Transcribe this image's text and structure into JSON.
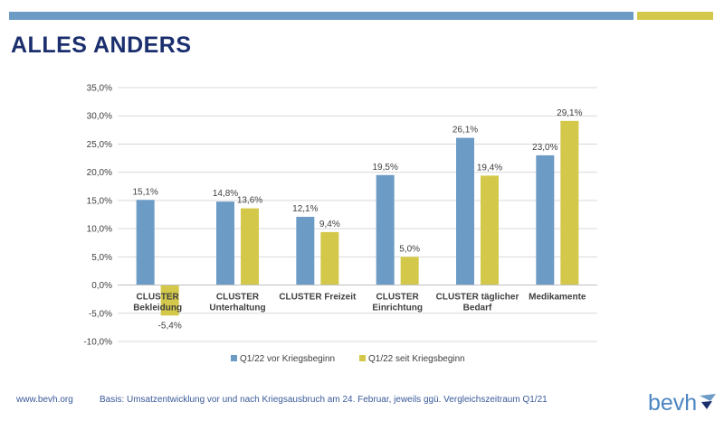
{
  "slide": {
    "title": "ALLES ANDERS",
    "footer_url": "www.bevh.org",
    "footer_note": "Basis: Umsatzentwicklung vor und nach Kriegsausbruch am 24. Februar, jeweils ggü. Vergleichszeitraum Q1/21",
    "logo_text": "bevh",
    "colors": {
      "accent_blue": "#6c9bc5",
      "accent_yellow": "#d4c84a",
      "title": "#1b2f6e"
    }
  },
  "chart_data": {
    "type": "bar",
    "categories": [
      [
        "CLUSTER",
        "Bekleidung"
      ],
      [
        "CLUSTER",
        "Unterhaltung"
      ],
      [
        "CLUSTER Freizeit"
      ],
      [
        "CLUSTER",
        "Einrichtung"
      ],
      [
        "CLUSTER täglicher",
        "Bedarf"
      ],
      [
        "Medikamente"
      ]
    ],
    "series": [
      {
        "name": "Q1/22 vor Kriegsbeginn",
        "color": "#6c9bc5",
        "values": [
          15.1,
          14.8,
          12.1,
          19.5,
          26.1,
          23.0
        ],
        "labels": [
          "15,1%",
          "14,8%",
          "12,1%",
          "19,5%",
          "26,1%",
          "23,0%"
        ]
      },
      {
        "name": "Q1/22 seit Kriegsbeginn",
        "color": "#d4c84a",
        "values": [
          -5.4,
          13.6,
          9.4,
          5.0,
          19.4,
          29.1
        ],
        "labels": [
          "-5,4%",
          "13,6%",
          "9,4%",
          "5,0%",
          "19,4%",
          "29,1%"
        ]
      }
    ],
    "ylim": [
      -10,
      35
    ],
    "yticks": [
      35,
      30,
      25,
      20,
      15,
      10,
      5,
      0,
      -5,
      -10
    ],
    "ytick_labels": [
      "35,0%",
      "30,0%",
      "25,0%",
      "20,0%",
      "15,0%",
      "10,0%",
      "5,0%",
      "0,0%",
      "-5,0%",
      "-10,0%"
    ],
    "grid": true,
    "legend": "bottom"
  }
}
